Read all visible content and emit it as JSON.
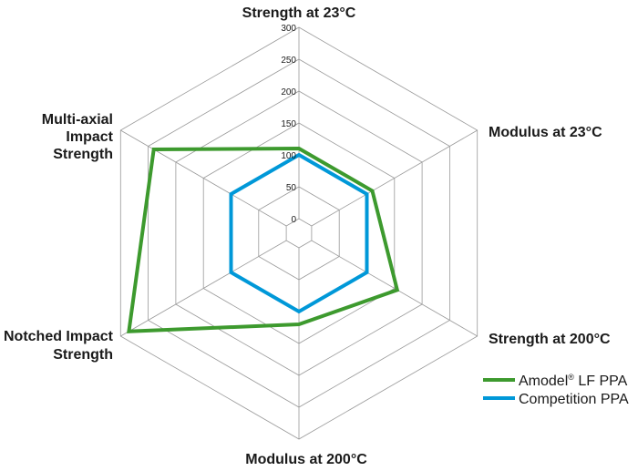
{
  "chart_data": {
    "type": "radar",
    "axes": [
      "Strength at 23°C",
      "Modulus at 23°C",
      "Strength at 200°C",
      "Modulus at 200°C",
      "Notched Impact Strength",
      "Multi-axial Impact Strength"
    ],
    "range": [
      0,
      300
    ],
    "ticks": [
      0,
      50,
      100,
      150,
      200,
      250,
      300
    ],
    "gridlines": true,
    "legend_placement": "bottom-right",
    "series": [
      {
        "name": "Amodel® LF PPA",
        "color": "#3d9a2e",
        "values": [
          110,
          110,
          155,
          120,
          285,
          240
        ]
      },
      {
        "name": "Competition PPA",
        "color": "#0098d8",
        "values": [
          100,
          100,
          100,
          100,
          100,
          100
        ]
      }
    ]
  },
  "legend": {
    "items": [
      {
        "brand": "Amodel",
        "mark": "®",
        "rest": " LF PPA"
      },
      {
        "brand": "Competition PPA",
        "mark": "",
        "rest": ""
      }
    ]
  }
}
